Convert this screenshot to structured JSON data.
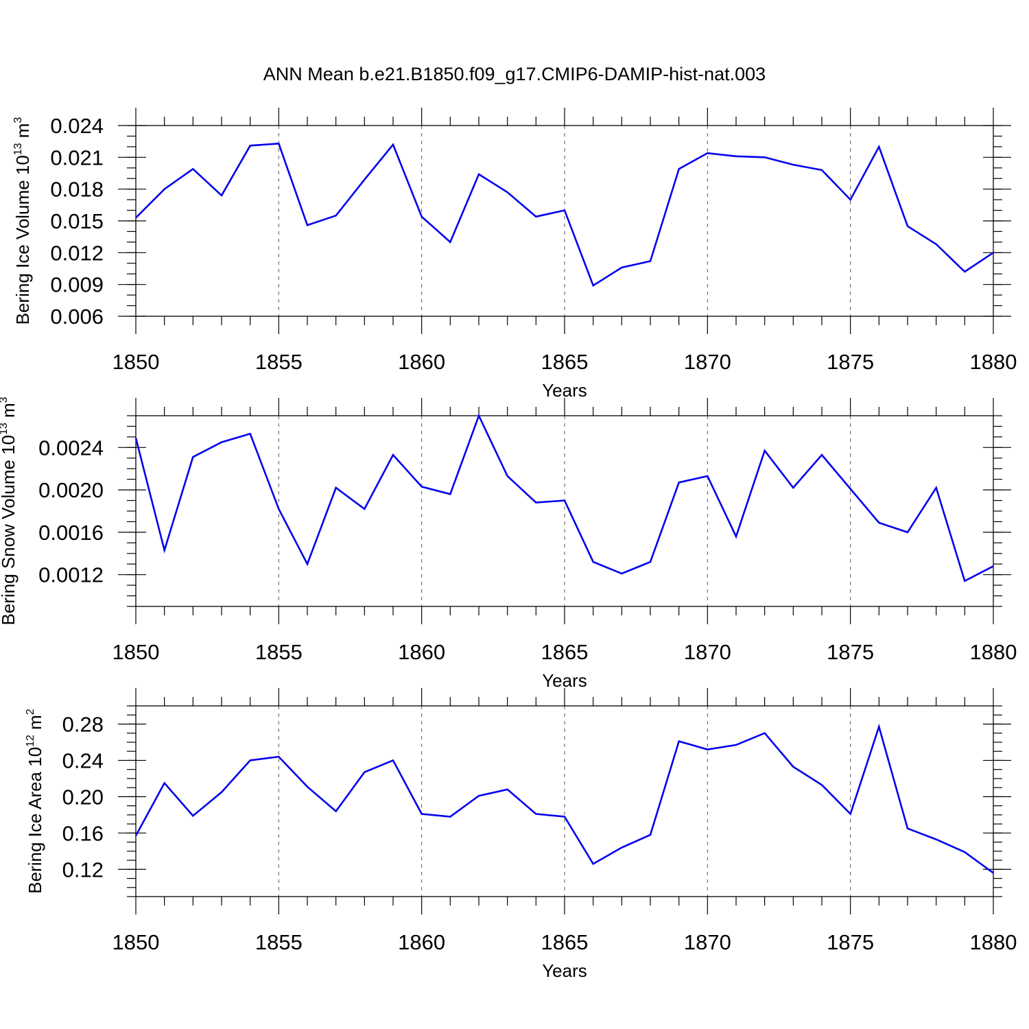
{
  "title": "ANN Mean b.e21.B1850.f09_g17.CMIP6-DAMIP-hist-nat.003",
  "colors": {
    "series": "#0000ee",
    "axes": "#000000",
    "grid": "#555555",
    "background": "#ffffff"
  },
  "chart_data": [
    {
      "type": "line",
      "ylabel_main": "Bering Ice Volume 10",
      "ylabel_exp": "13",
      "ylabel_unit": " m",
      "ylabel_unit_exp": "3",
      "xlabel": "Years",
      "xlim": [
        1850,
        1880
      ],
      "ylim": [
        0.006,
        0.024
      ],
      "yticks": [
        0.006,
        0.009,
        0.012,
        0.015,
        0.018,
        0.021,
        0.024
      ],
      "ytick_labels": [
        "0.006",
        "0.009",
        "0.012",
        "0.015",
        "0.018",
        "0.021",
        "0.024"
      ],
      "yminor_step": 0.001,
      "xticks": [
        1850,
        1855,
        1860,
        1865,
        1870,
        1875,
        1880
      ],
      "xtick_labels": [
        "1850",
        "1855",
        "1860",
        "1865",
        "1870",
        "1875",
        "1880"
      ],
      "grid": "vertical dashed at major x ticks",
      "x": [
        1850,
        1851,
        1852,
        1853,
        1854,
        1855,
        1856,
        1857,
        1858,
        1859,
        1860,
        1861,
        1862,
        1863,
        1864,
        1865,
        1866,
        1867,
        1868,
        1869,
        1870,
        1871,
        1872,
        1873,
        1874,
        1875,
        1876,
        1877,
        1878,
        1879,
        1880
      ],
      "values": [
        0.0153,
        0.018,
        0.0199,
        0.0174,
        0.0221,
        0.0223,
        0.0146,
        0.0155,
        0.0189,
        0.0222,
        0.0154,
        0.013,
        0.0194,
        0.0177,
        0.0154,
        0.016,
        0.0089,
        0.0106,
        0.0112,
        0.0199,
        0.0214,
        0.0211,
        0.021,
        0.0203,
        0.0198,
        0.017,
        0.022,
        0.0145,
        0.0128,
        0.0102,
        0.012
      ]
    },
    {
      "type": "line",
      "ylabel_main": "Bering Snow Volume 10",
      "ylabel_exp": "13",
      "ylabel_unit": " m",
      "ylabel_unit_exp": "3",
      "xlabel": "Years",
      "xlim": [
        1850,
        1880
      ],
      "ylim": [
        0.0009,
        0.0027
      ],
      "yticks": [
        0.0012,
        0.0016,
        0.002,
        0.0024
      ],
      "ytick_labels": [
        "0.0012",
        "0.0016",
        "0.0020",
        "0.0024"
      ],
      "yminor_step": 0.0001,
      "xticks": [
        1850,
        1855,
        1860,
        1865,
        1870,
        1875,
        1880
      ],
      "xtick_labels": [
        "1850",
        "1855",
        "1860",
        "1865",
        "1870",
        "1875",
        "1880"
      ],
      "grid": "vertical dashed at major x ticks",
      "x": [
        1850,
        1851,
        1852,
        1853,
        1854,
        1855,
        1856,
        1857,
        1858,
        1859,
        1860,
        1861,
        1862,
        1863,
        1864,
        1865,
        1866,
        1867,
        1868,
        1869,
        1870,
        1871,
        1872,
        1873,
        1874,
        1875,
        1876,
        1877,
        1878,
        1879,
        1880
      ],
      "values": [
        0.00249,
        0.00143,
        0.00231,
        0.00245,
        0.00253,
        0.00182,
        0.0013,
        0.00202,
        0.00182,
        0.00233,
        0.00203,
        0.00196,
        0.0027,
        0.00213,
        0.00188,
        0.0019,
        0.00132,
        0.00121,
        0.00132,
        0.00207,
        0.00213,
        0.00156,
        0.00237,
        0.00202,
        0.00233,
        0.00201,
        0.00169,
        0.0016,
        0.00202,
        0.00114,
        0.00128
      ]
    },
    {
      "type": "line",
      "ylabel_main": "Bering Ice Area 10",
      "ylabel_exp": "12",
      "ylabel_unit": " m",
      "ylabel_unit_exp": "2",
      "xlabel": "Years",
      "xlim": [
        1850,
        1880
      ],
      "ylim": [
        0.09,
        0.3
      ],
      "yticks": [
        0.12,
        0.16,
        0.2,
        0.24,
        0.28
      ],
      "ytick_labels": [
        "0.12",
        "0.16",
        "0.20",
        "0.24",
        "0.28"
      ],
      "yminor_step": 0.01,
      "xticks": [
        1850,
        1855,
        1860,
        1865,
        1870,
        1875,
        1880
      ],
      "xtick_labels": [
        "1850",
        "1855",
        "1860",
        "1865",
        "1870",
        "1875",
        "1880"
      ],
      "grid": "vertical dashed at major x ticks",
      "x": [
        1850,
        1851,
        1852,
        1853,
        1854,
        1855,
        1856,
        1857,
        1858,
        1859,
        1860,
        1861,
        1862,
        1863,
        1864,
        1865,
        1866,
        1867,
        1868,
        1869,
        1870,
        1871,
        1872,
        1873,
        1874,
        1875,
        1876,
        1877,
        1878,
        1879,
        1880
      ],
      "values": [
        0.157,
        0.215,
        0.179,
        0.205,
        0.24,
        0.244,
        0.211,
        0.184,
        0.227,
        0.24,
        0.181,
        0.178,
        0.201,
        0.208,
        0.181,
        0.178,
        0.126,
        0.144,
        0.158,
        0.261,
        0.252,
        0.257,
        0.27,
        0.233,
        0.213,
        0.181,
        0.277,
        0.165,
        0.153,
        0.139,
        0.116
      ]
    }
  ]
}
